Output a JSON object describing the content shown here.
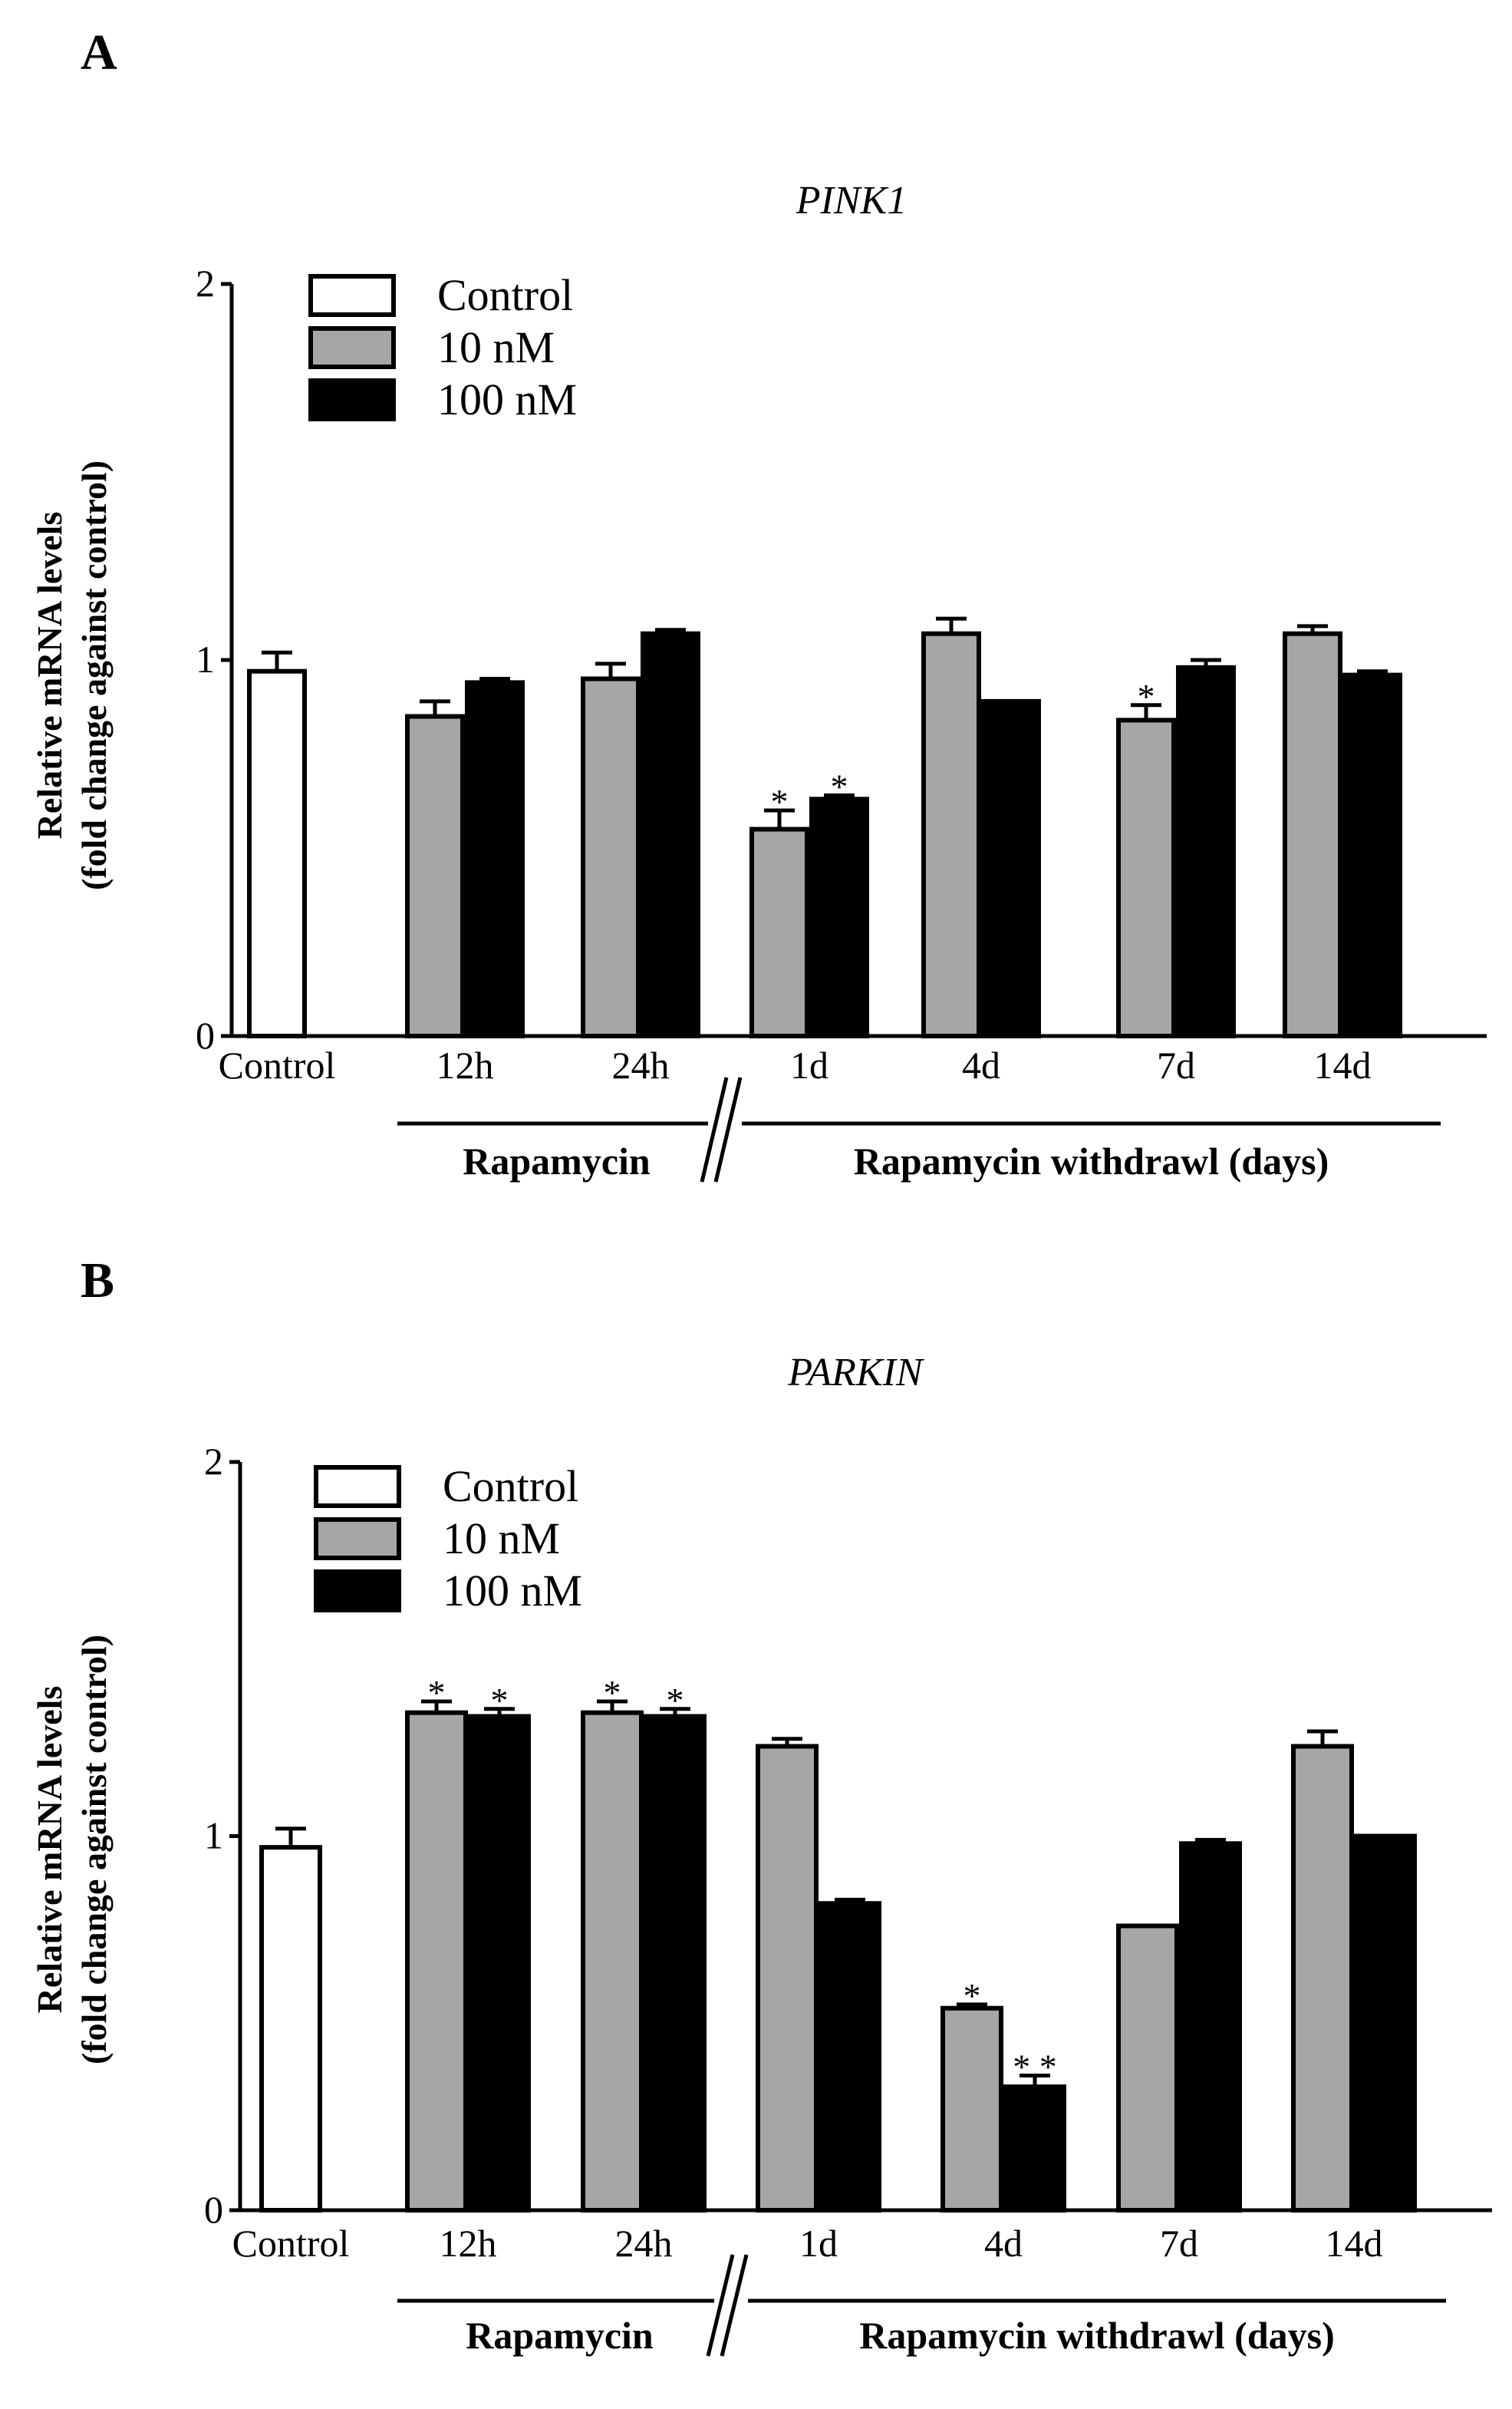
{
  "chart_data": [
    {
      "type": "bar",
      "panel": "A",
      "title": "PINK1",
      "ylabel": [
        "Relative mRNA levels",
        "(fold change against control)"
      ],
      "ylim": [
        0,
        2
      ],
      "yticks": [
        "0",
        "1",
        "2"
      ],
      "categories": [
        "Control",
        "12h",
        "24h",
        "1d",
        "4d",
        "7d",
        "14d"
      ],
      "groups": [
        "Rapamycin",
        "Rapamycin withdrawl (days)"
      ],
      "series": [
        {
          "name": "Control",
          "color": "#ffffff",
          "values": [
            0.97,
            null,
            null,
            null,
            null,
            null,
            null
          ],
          "errors": [
            0.05,
            null,
            null,
            null,
            null,
            null,
            null
          ],
          "stars": [
            "",
            "",
            "",
            "",
            "",
            "",
            ""
          ]
        },
        {
          "name": "10 nM",
          "color": "#a6a6a6",
          "values": [
            null,
            0.85,
            0.95,
            0.55,
            1.07,
            0.84,
            1.07
          ],
          "errors": [
            null,
            0.04,
            0.04,
            0.05,
            0.04,
            0.04,
            0.02
          ],
          "stars": [
            "",
            "",
            "",
            "*",
            "",
            "*",
            ""
          ]
        },
        {
          "name": "100 nM",
          "color": "#000000",
          "values": [
            null,
            0.94,
            1.07,
            0.63,
            0.89,
            0.98,
            0.96
          ],
          "errors": [
            null,
            0.01,
            0.01,
            0.01,
            0.0,
            0.02,
            0.01
          ],
          "stars": [
            "",
            "",
            "",
            "*",
            "",
            "",
            ""
          ]
        }
      ],
      "legend": [
        "Control",
        "10 nM",
        "100 nM"
      ],
      "legend_placement": "top-left",
      "grid": false
    },
    {
      "type": "bar",
      "panel": "B",
      "title": "PARKIN",
      "ylabel": [
        "Relative mRNA levels",
        "(fold change against control)"
      ],
      "ylim": [
        0,
        2
      ],
      "yticks": [
        "0",
        "1",
        "2"
      ],
      "categories": [
        "Control",
        "12h",
        "24h",
        "1d",
        "4d",
        "7d",
        "14d"
      ],
      "groups": [
        "Rapamycin",
        "Rapamycin withdrawl (days)"
      ],
      "series": [
        {
          "name": "Control",
          "color": "#ffffff",
          "values": [
            0.97,
            null,
            null,
            null,
            null,
            null,
            null
          ],
          "errors": [
            0.05,
            null,
            null,
            null,
            null,
            null,
            null
          ],
          "stars": [
            "",
            "",
            "",
            "",
            "",
            "",
            ""
          ]
        },
        {
          "name": "10 nM",
          "color": "#a6a6a6",
          "values": [
            null,
            1.33,
            1.33,
            1.24,
            0.54,
            0.76,
            1.24
          ],
          "errors": [
            null,
            0.03,
            0.03,
            0.02,
            0.01,
            0.0,
            0.04
          ],
          "stars": [
            "",
            "*",
            "*",
            "",
            "*",
            "",
            ""
          ]
        },
        {
          "name": "100 nM",
          "color": "#000000",
          "values": [
            null,
            1.32,
            1.32,
            0.82,
            0.33,
            0.98,
            1.0
          ],
          "errors": [
            null,
            0.02,
            0.02,
            0.01,
            0.03,
            0.01,
            0.0
          ],
          "stars": [
            "",
            "*",
            "*",
            "",
            "* *",
            "",
            ""
          ]
        }
      ],
      "legend": [
        "Control",
        "10 nM",
        "100 nM"
      ],
      "legend_placement": "top-left",
      "grid": false
    }
  ]
}
